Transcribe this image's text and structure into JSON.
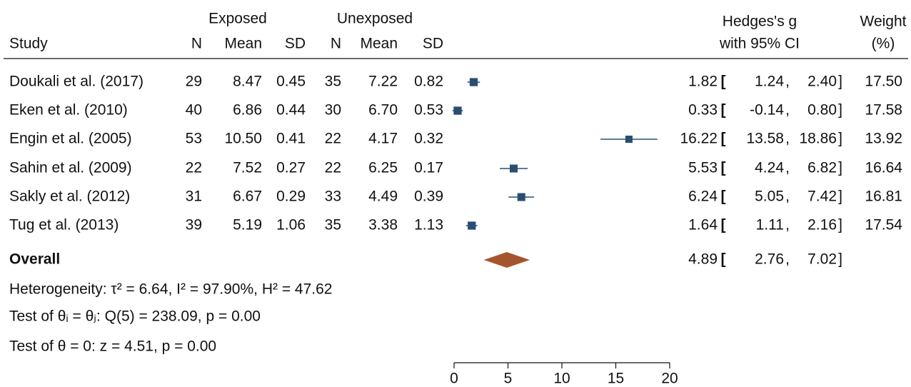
{
  "chart_data": {
    "type": "forest",
    "groups": [
      "Exposed",
      "Unexposed"
    ],
    "columns": [
      "Study",
      "N",
      "Mean",
      "SD",
      "N",
      "Mean",
      "SD"
    ],
    "effect_header": [
      "Hedges's g",
      "with 95% CI"
    ],
    "weight_header": [
      "Weight",
      "(%)"
    ],
    "rows": [
      [
        "Doukali et al. (2017)",
        "29",
        "8.47",
        "0.45",
        "35",
        "7.22",
        "0.82"
      ],
      [
        "Eken et al. (2010)",
        "40",
        "6.86",
        "0.44",
        "30",
        "6.70",
        "0.53"
      ],
      [
        "Engin et al. (2005)",
        "53",
        "10.50",
        "0.41",
        "22",
        "4.17",
        "0.32"
      ],
      [
        "Sahin et al. (2009)",
        "22",
        "7.52",
        "0.27",
        "22",
        "6.25",
        "0.17"
      ],
      [
        "Sakly et al. (2012)",
        "31",
        "6.67",
        "0.29",
        "33",
        "4.49",
        "0.39"
      ],
      [
        "Tug et al. (2013)",
        "39",
        "5.19",
        "1.06",
        "35",
        "3.38",
        "1.13"
      ]
    ],
    "effect": {
      "values": [
        1.82,
        0.33,
        16.22,
        5.53,
        6.24,
        1.64
      ],
      "value_labels": [
        "1.82",
        "0.33",
        "16.22",
        "5.53",
        "6.24",
        "1.64"
      ]
    },
    "ci_lower": {
      "values": [
        1.24,
        -0.14,
        13.58,
        4.24,
        5.05,
        1.11
      ],
      "value_labels": [
        "1.24",
        "-0.14",
        "13.58",
        "4.24",
        "5.05",
        "1.11"
      ]
    },
    "ci_upper": {
      "values": [
        2.4,
        0.8,
        18.86,
        6.82,
        7.42,
        2.16
      ],
      "value_labels": [
        "2.40",
        "0.80",
        "18.86",
        "6.82",
        "7.42",
        "2.16"
      ]
    },
    "weight": {
      "values": [
        17.5,
        17.58,
        13.92,
        16.64,
        16.81,
        17.54
      ],
      "value_labels": [
        "17.50",
        "17.58",
        "13.92",
        "16.64",
        "16.81",
        "17.54"
      ]
    },
    "color": "#2a4e72",
    "overall": {
      "label": "Overall",
      "value": 4.89,
      "lower": 2.76,
      "upper": 7.02,
      "color": "#a5552c"
    },
    "notes": [
      "Heterogeneity: τ² = 6.64, I² = 97.90%, H² = 47.62",
      "Test of θᵢ = θⱼ: Q(5) = 238.09, p = 0.00",
      "Test of θ = 0: z = 4.51, p = 0.00"
    ],
    "xlim": [
      0,
      20
    ],
    "xticks": [
      0,
      5,
      10,
      15,
      20
    ]
  }
}
